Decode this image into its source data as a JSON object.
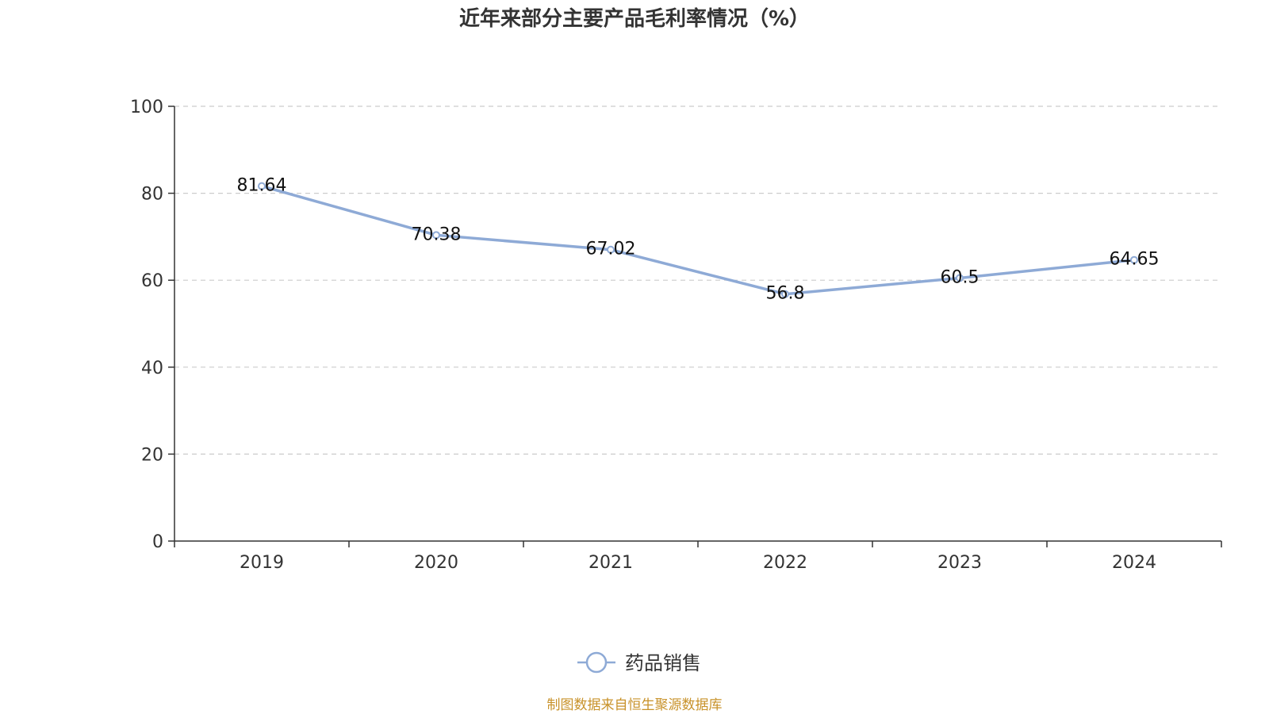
{
  "chart_data": {
    "type": "line",
    "title": "近年来部分主要产品毛利率情况（%）",
    "categories": [
      "2019",
      "2020",
      "2021",
      "2022",
      "2023",
      "2024"
    ],
    "series": [
      {
        "name": "药品销售",
        "values": [
          81.64,
          70.38,
          67.02,
          56.8,
          60.5,
          64.65
        ],
        "labels": [
          "81.64",
          "70.38",
          "67.02",
          "56.8",
          "60.5",
          "64.65"
        ],
        "color": "#8eaad6"
      }
    ],
    "yticks": [
      "0",
      "20",
      "40",
      "60",
      "80",
      "100"
    ],
    "ylim": [
      0,
      100
    ],
    "xlabel": "",
    "ylabel": "",
    "grid": true,
    "legend": "bottom-center"
  },
  "source": "制图数据来自恒生聚源数据库"
}
